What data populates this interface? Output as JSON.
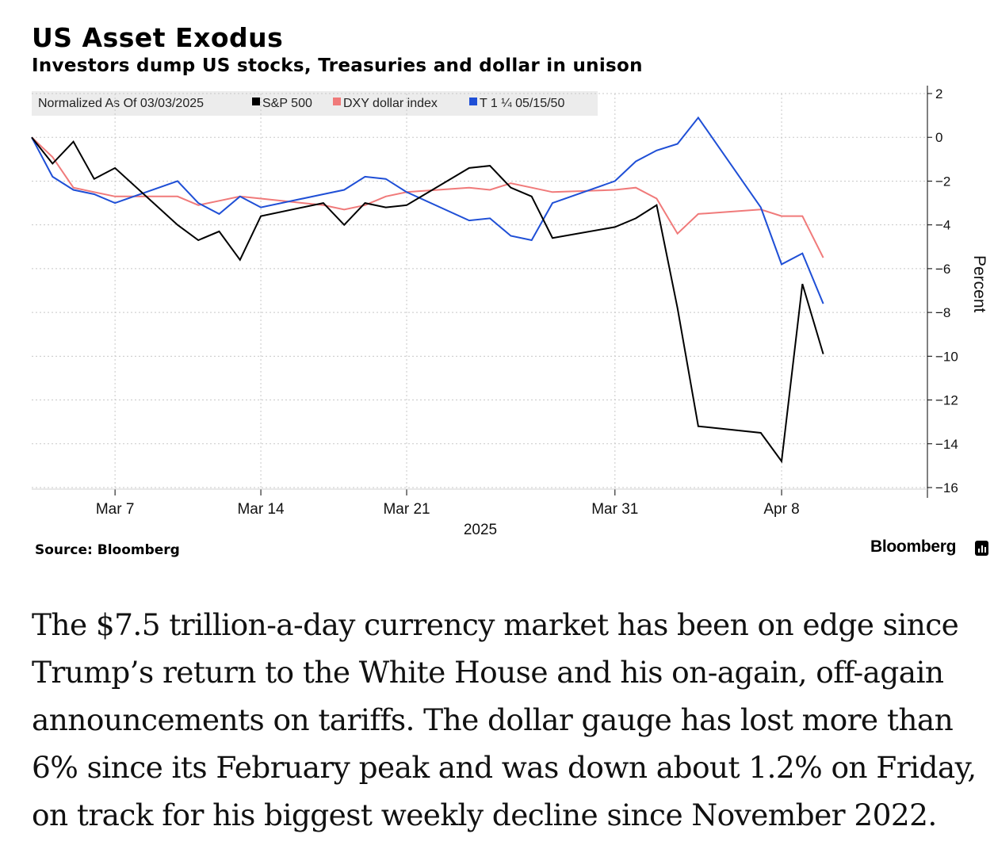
{
  "header": {
    "title": "US Asset Exodus",
    "subtitle": "Investors dump US stocks, Treasuries and dollar in unison"
  },
  "legend": {
    "prefix": "Normalized As Of 03/03/2025",
    "items": [
      "S&P 500",
      "DXY dollar index",
      "T 1 ¼ 05/15/50"
    ]
  },
  "footer": {
    "source": "Source: Bloomberg",
    "brand": "Bloomberg"
  },
  "article": {
    "text": "The $7.5 trillion-a-day currency market has been on edge since Trump’s return to the White House and his on-again, off-again announcements on tariffs. The dollar gauge has lost more than 6% since its February peak and was down about 1.2% on Friday, on track for his biggest weekly decline since November 2022."
  },
  "chart_data": {
    "type": "line",
    "title": "US Asset Exodus",
    "subtitle": "Investors dump US stocks, Treasuries and dollar in unison",
    "ylabel": "Percent",
    "ylim": [
      -16,
      2
    ],
    "yticks": [
      2,
      0,
      -2,
      -4,
      -6,
      -8,
      -10,
      -12,
      -14,
      -16
    ],
    "x": [
      "2025-03-03",
      "2025-03-04",
      "2025-03-05",
      "2025-03-06",
      "2025-03-07",
      "2025-03-10",
      "2025-03-11",
      "2025-03-12",
      "2025-03-13",
      "2025-03-14",
      "2025-03-17",
      "2025-03-18",
      "2025-03-19",
      "2025-03-20",
      "2025-03-21",
      "2025-03-24",
      "2025-03-25",
      "2025-03-26",
      "2025-03-27",
      "2025-03-28",
      "2025-03-31",
      "2025-04-01",
      "2025-04-02",
      "2025-04-03",
      "2025-04-04",
      "2025-04-07",
      "2025-04-08",
      "2025-04-09",
      "2025-04-10"
    ],
    "xticks": [
      {
        "date": "2025-03-07",
        "label": "Mar 7"
      },
      {
        "date": "2025-03-14",
        "label": "Mar 14"
      },
      {
        "date": "2025-03-21",
        "label": "Mar 21"
      },
      {
        "date": "2025-03-31",
        "label": "Mar 31"
      },
      {
        "date": "2025-04-08",
        "label": "Apr 8"
      }
    ],
    "year_label": "2025",
    "series": [
      {
        "name": "S&P 500",
        "color": "#000000",
        "values": [
          0,
          -1.2,
          -0.2,
          -1.9,
          -1.4,
          -4.0,
          -4.7,
          -4.3,
          -5.6,
          -3.6,
          -3.0,
          -4.0,
          -3.0,
          -3.2,
          -3.1,
          -1.4,
          -1.3,
          -2.3,
          -2.7,
          -4.6,
          -4.1,
          -3.7,
          -3.1,
          -7.8,
          -13.2,
          -13.5,
          -14.8,
          -6.7,
          -9.9
        ]
      },
      {
        "name": "DXY dollar index",
        "color": "#f07a7a",
        "values": [
          0,
          -0.9,
          -2.3,
          -2.5,
          -2.7,
          -2.7,
          -3.1,
          -2.9,
          -2.7,
          -2.8,
          -3.1,
          -3.3,
          -3.1,
          -2.7,
          -2.5,
          -2.3,
          -2.4,
          -2.1,
          -2.3,
          -2.5,
          -2.4,
          -2.3,
          -2.8,
          -4.4,
          -3.5,
          -3.3,
          -3.6,
          -3.6,
          -5.5
        ]
      },
      {
        "name": "T 1 ¼ 05/15/50",
        "color": "#1f4fd6",
        "values": [
          0,
          -1.8,
          -2.4,
          -2.6,
          -3.0,
          -2.0,
          -3.0,
          -3.5,
          -2.7,
          -3.2,
          -2.6,
          -2.4,
          -1.8,
          -1.9,
          -2.5,
          -3.8,
          -3.7,
          -4.5,
          -4.7,
          -3.0,
          -2.0,
          -1.1,
          -0.6,
          -0.3,
          0.9,
          -3.2,
          -5.8,
          -5.3,
          -7.6
        ]
      }
    ],
    "grid": true,
    "legend_position": "top-left"
  }
}
